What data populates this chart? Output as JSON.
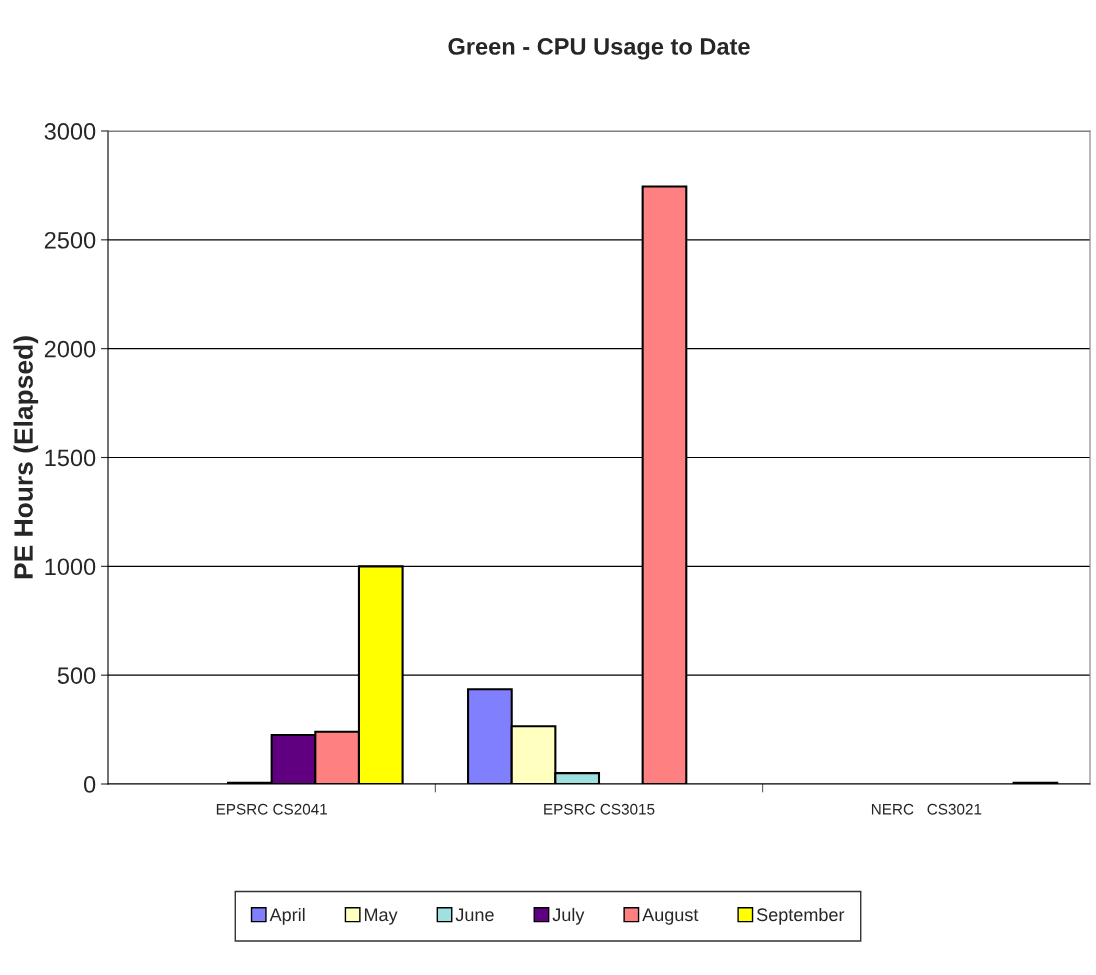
{
  "chart_data": {
    "type": "bar",
    "title": "Green - CPU Usage to Date",
    "ylabel": "PE Hours (Elapsed)",
    "categories": [
      "EPSRC CS2041",
      "EPSRC CS3015",
      "NERC   CS3021"
    ],
    "series": [
      {
        "name": "April",
        "color": "#8080ff",
        "values": [
          0,
          435,
          0
        ]
      },
      {
        "name": "May",
        "color": "#ffffc0",
        "values": [
          0,
          265,
          0
        ]
      },
      {
        "name": "June",
        "color": "#a0e0e0",
        "values": [
          5,
          50,
          0
        ]
      },
      {
        "name": "July",
        "color": "#600080",
        "values": [
          225,
          0,
          0
        ]
      },
      {
        "name": "August",
        "color": "#ff8080",
        "values": [
          240,
          2745,
          0
        ]
      },
      {
        "name": "September",
        "color": "#ffff00",
        "values": [
          1000,
          0,
          5
        ]
      }
    ],
    "ylim": [
      0,
      3000
    ],
    "yticks": [
      0,
      500,
      1000,
      1500,
      2000,
      2500,
      3000
    ],
    "grid": "y",
    "legend": "bottom"
  }
}
